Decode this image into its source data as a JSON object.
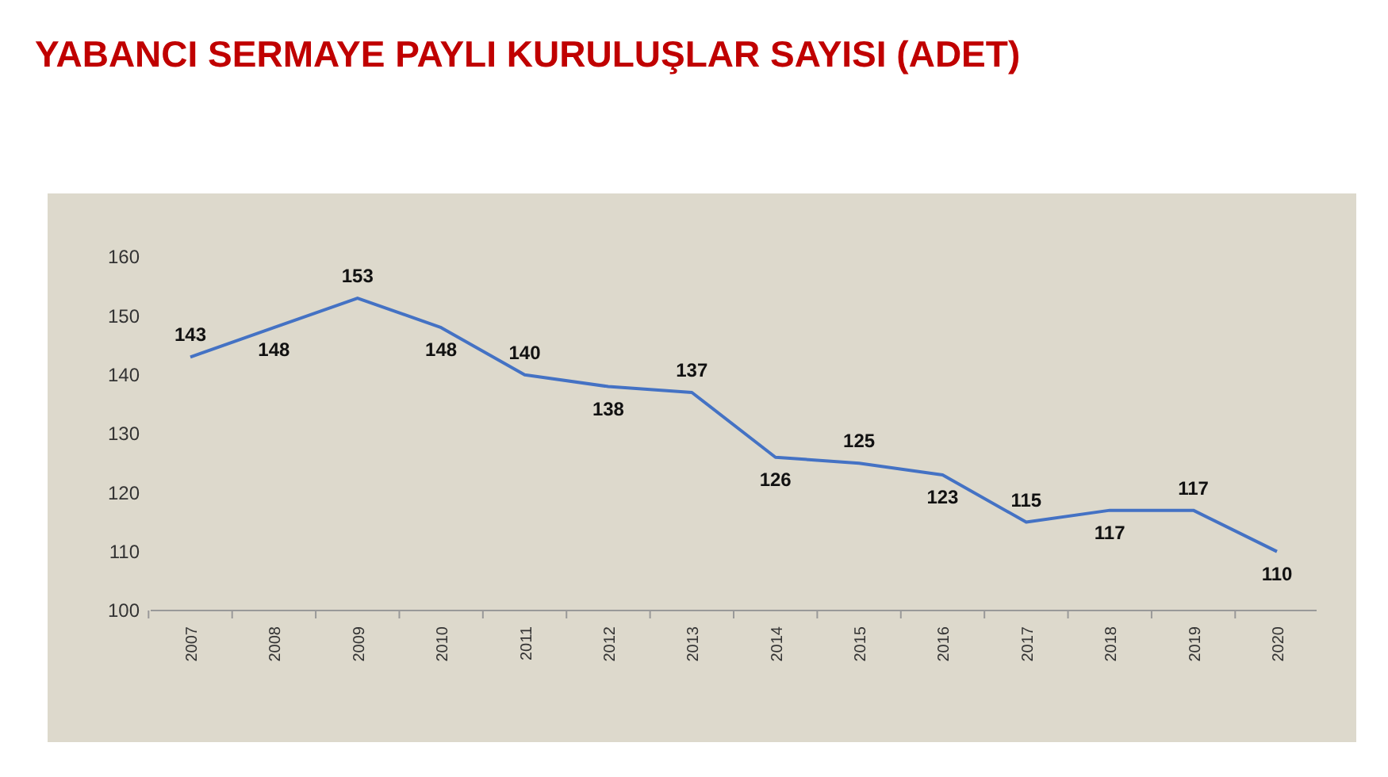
{
  "chart_data": {
    "type": "line",
    "title": "YABANCI SERMAYE PAYLI KURULUŞLAR SAYISI (ADET)",
    "categories": [
      "2007",
      "2008",
      "2009",
      "2010",
      "2011",
      "2012",
      "2013",
      "2014",
      "2015",
      "2016",
      "2017",
      "2018",
      "2019",
      "2020"
    ],
    "series": [
      {
        "color": "#4472c4",
        "values": [
          143,
          148,
          153,
          148,
          140,
          138,
          137,
          126,
          125,
          123,
          115,
          117,
          117,
          110
        ]
      }
    ],
    "ylim": [
      100,
      160
    ],
    "yticks": [
      100,
      110,
      120,
      130,
      140,
      150,
      160
    ],
    "grid": false,
    "data_labels": true,
    "marker": "none",
    "line_style": "solid"
  }
}
